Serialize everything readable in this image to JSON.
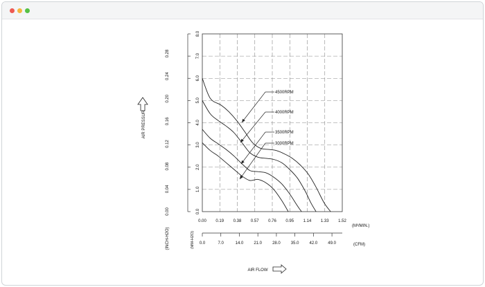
{
  "window": {
    "controls": [
      "close",
      "minimize",
      "maximize"
    ],
    "colors": {
      "close": "#ee5a52",
      "minimize": "#f5b740",
      "maximize": "#56c145"
    }
  },
  "chart_data": {
    "type": "line",
    "title": "",
    "xlabel": "AIR FLOW",
    "ylabel": "AIR PRESSURE",
    "grid": true,
    "xlim": [
      0,
      52.9
    ],
    "ylim": [
      0,
      8.0
    ],
    "x_axes": [
      {
        "unit": "(M³/MIN.)",
        "ticks": [
          "0.00",
          "0.19",
          "0.38",
          "0.57",
          "0.76",
          "0.95",
          "1.14",
          "1.33",
          "1.52"
        ]
      },
      {
        "unit": "(CFM)",
        "ticks": [
          "0.0",
          "7.0",
          "14.0",
          "21.0",
          "28.0",
          "35.0",
          "42.0",
          "49.0"
        ]
      }
    ],
    "y_axes": [
      {
        "unit": "(MM-H2O)",
        "ticks": [
          "0.0",
          "1.0",
          "2.0",
          "3.0",
          "4.0",
          "5.0",
          "6.0",
          "7.0",
          "8.0"
        ]
      },
      {
        "unit": "(INCH-H2O)",
        "ticks": [
          "0.00",
          "0.04",
          "0.08",
          "0.12",
          "0.16",
          "0.20",
          "0.24",
          "0.28"
        ]
      }
    ],
    "series": [
      {
        "name": "4500RPM",
        "x": [
          0,
          3,
          7,
          10,
          13,
          16,
          19,
          22,
          25,
          28,
          31,
          34,
          37,
          40,
          43,
          46,
          48.5
        ],
        "y": [
          6.0,
          5.1,
          4.8,
          4.5,
          4.1,
          3.6,
          3.1,
          2.85,
          2.8,
          2.75,
          2.6,
          2.4,
          2.1,
          1.7,
          1.1,
          0.4,
          0
        ]
      },
      {
        "name": "4000RPM",
        "x": [
          0,
          3,
          6,
          9,
          12,
          15,
          18,
          21,
          24,
          27,
          30,
          33,
          36,
          39,
          41,
          43
        ],
        "y": [
          5.0,
          4.4,
          4.1,
          3.85,
          3.55,
          3.1,
          2.65,
          2.45,
          2.4,
          2.35,
          2.2,
          1.9,
          1.5,
          0.9,
          0.4,
          0
        ]
      },
      {
        "name": "3500RPM",
        "x": [
          0,
          3,
          6,
          9,
          12,
          15,
          18,
          21,
          24,
          27,
          30,
          33,
          36,
          37.5
        ],
        "y": [
          3.7,
          3.3,
          3.05,
          2.8,
          2.5,
          2.15,
          1.85,
          1.8,
          1.75,
          1.55,
          1.25,
          0.8,
          0.25,
          0
        ]
      },
      {
        "name": "3000RPM",
        "x": [
          0,
          3,
          6,
          9,
          12,
          15,
          18,
          21,
          24,
          27,
          30,
          32.5
        ],
        "y": [
          3.1,
          2.75,
          2.5,
          2.2,
          1.9,
          1.6,
          1.4,
          1.45,
          1.3,
          1.0,
          0.5,
          0
        ]
      }
    ]
  }
}
